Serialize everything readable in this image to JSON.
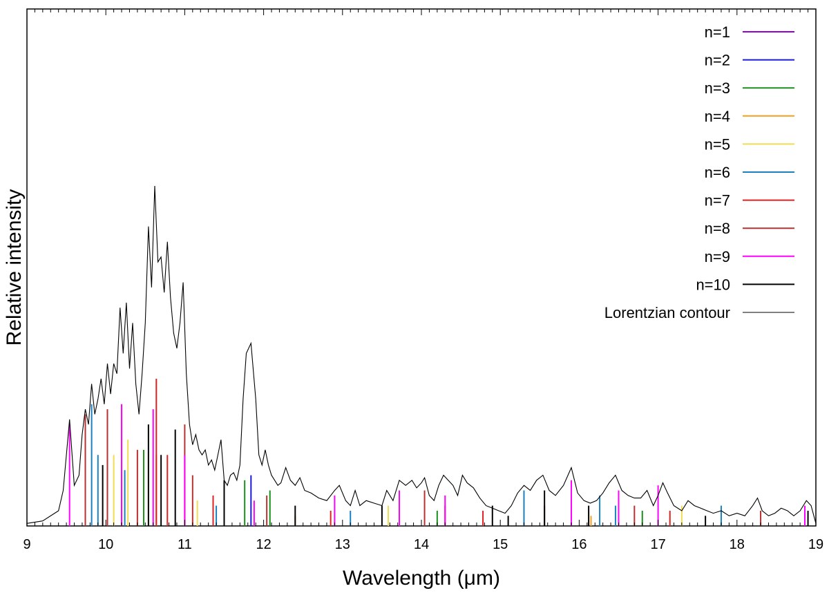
{
  "chart_data": {
    "type": "line",
    "title": "",
    "xlabel": "Wavelength (μm)",
    "ylabel": "Relative intensity",
    "xlim": [
      9,
      19
    ],
    "ylim": [
      0,
      1
    ],
    "x_ticks": [
      9,
      10,
      11,
      12,
      13,
      14,
      15,
      16,
      17,
      18,
      19
    ],
    "grid": false,
    "legend_position": "top-right",
    "series": [
      {
        "name": "n=1",
        "color": "#9400d3",
        "style": "sticks",
        "lines": []
      },
      {
        "name": "n=2",
        "color": "#1a1ad8",
        "style": "sticks",
        "lines": [
          [
            11.84,
            0.1
          ]
        ]
      },
      {
        "name": "n=3",
        "color": "#1a8f1a",
        "style": "sticks",
        "lines": [
          [
            10.48,
            0.15
          ],
          [
            11.76,
            0.09
          ],
          [
            12.08,
            0.07
          ],
          [
            14.2,
            0.03
          ],
          [
            16.8,
            0.03
          ]
        ]
      },
      {
        "name": "n=4",
        "color": "#f0a020",
        "style": "sticks",
        "lines": [
          [
            10.2,
            0.11
          ],
          [
            10.64,
            0.14
          ],
          [
            12.4,
            0.02
          ],
          [
            16.15,
            0.02
          ]
        ]
      },
      {
        "name": "n=5",
        "color": "#f0dc50",
        "style": "sticks",
        "lines": [
          [
            10.1,
            0.14
          ],
          [
            10.28,
            0.17
          ],
          [
            11.16,
            0.05
          ],
          [
            13.58,
            0.04
          ],
          [
            17.3,
            0.04
          ]
        ]
      },
      {
        "name": "n=6",
        "color": "#1a80c0",
        "style": "sticks",
        "lines": [
          [
            9.82,
            0.24
          ],
          [
            9.9,
            0.14
          ],
          [
            10.24,
            0.11
          ],
          [
            11.4,
            0.04
          ],
          [
            13.1,
            0.03
          ],
          [
            15.3,
            0.07
          ],
          [
            16.26,
            0.06
          ],
          [
            16.46,
            0.04
          ],
          [
            17.8,
            0.04
          ]
        ]
      },
      {
        "name": "n=7",
        "color": "#e02020",
        "style": "sticks",
        "lines": [
          [
            10.64,
            0.29
          ],
          [
            10.78,
            0.14
          ],
          [
            11.36,
            0.06
          ],
          [
            12.85,
            0.03
          ],
          [
            14.78,
            0.03
          ],
          [
            17.15,
            0.03
          ]
        ]
      },
      {
        "name": "n=8",
        "color": "#b83030",
        "style": "sticks",
        "lines": [
          [
            9.74,
            0.22
          ],
          [
            10.02,
            0.23
          ],
          [
            10.4,
            0.15
          ],
          [
            11.0,
            0.2
          ],
          [
            11.1,
            0.1
          ],
          [
            12.04,
            0.06
          ],
          [
            14.04,
            0.07
          ],
          [
            14.3,
            0.04
          ],
          [
            15.56,
            0.04
          ],
          [
            16.7,
            0.04
          ],
          [
            18.3,
            0.03
          ]
        ]
      },
      {
        "name": "n=9",
        "color": "#ff00ff",
        "style": "sticks",
        "lines": [
          [
            9.54,
            0.2
          ],
          [
            10.2,
            0.24
          ],
          [
            10.6,
            0.23
          ],
          [
            11.0,
            0.14
          ],
          [
            11.88,
            0.05
          ],
          [
            12.9,
            0.06
          ],
          [
            13.72,
            0.07
          ],
          [
            14.3,
            0.06
          ],
          [
            15.9,
            0.09
          ],
          [
            16.5,
            0.07
          ],
          [
            17.0,
            0.08
          ],
          [
            18.86,
            0.04
          ]
        ]
      },
      {
        "name": "n=10",
        "color": "#000000",
        "style": "sticks",
        "lines": [
          [
            9.96,
            0.12
          ],
          [
            10.54,
            0.2
          ],
          [
            10.7,
            0.14
          ],
          [
            10.88,
            0.19
          ],
          [
            11.5,
            0.09
          ],
          [
            12.4,
            0.04
          ],
          [
            13.5,
            0.04
          ],
          [
            14.9,
            0.04
          ],
          [
            15.1,
            0.02
          ],
          [
            15.56,
            0.07
          ],
          [
            16.12,
            0.04
          ],
          [
            17.6,
            0.02
          ],
          [
            18.9,
            0.03
          ]
        ]
      },
      {
        "name": "Lorentzian contour",
        "color": "#000000",
        "style": "line",
        "x": [
          9.0,
          9.2,
          9.4,
          9.46,
          9.54,
          9.6,
          9.66,
          9.7,
          9.74,
          9.78,
          9.82,
          9.86,
          9.9,
          9.94,
          9.98,
          10.02,
          10.06,
          10.1,
          10.14,
          10.18,
          10.22,
          10.26,
          10.3,
          10.34,
          10.38,
          10.42,
          10.46,
          10.5,
          10.54,
          10.58,
          10.62,
          10.66,
          10.7,
          10.74,
          10.78,
          10.82,
          10.86,
          10.9,
          10.94,
          10.98,
          11.02,
          11.06,
          11.1,
          11.14,
          11.18,
          11.22,
          11.26,
          11.3,
          11.34,
          11.38,
          11.42,
          11.46,
          11.5,
          11.54,
          11.58,
          11.62,
          11.66,
          11.7,
          11.74,
          11.78,
          11.84,
          11.9,
          11.94,
          11.98,
          12.02,
          12.06,
          12.1,
          12.14,
          12.18,
          12.22,
          12.28,
          12.34,
          12.4,
          12.46,
          12.52,
          12.6,
          12.7,
          12.8,
          12.9,
          12.96,
          13.04,
          13.1,
          13.16,
          13.22,
          13.3,
          13.4,
          13.5,
          13.56,
          13.64,
          13.72,
          13.8,
          13.88,
          13.94,
          14.0,
          14.04,
          14.1,
          14.16,
          14.22,
          14.28,
          14.34,
          14.4,
          14.46,
          14.52,
          14.58,
          14.66,
          14.74,
          14.82,
          14.9,
          14.98,
          15.06,
          15.14,
          15.22,
          15.3,
          15.38,
          15.46,
          15.54,
          15.62,
          15.7,
          15.8,
          15.9,
          15.98,
          16.06,
          16.14,
          16.22,
          16.3,
          16.38,
          16.46,
          16.54,
          16.62,
          16.7,
          16.78,
          16.86,
          16.94,
          17.0,
          17.06,
          17.12,
          17.2,
          17.3,
          17.38,
          17.46,
          17.54,
          17.62,
          17.7,
          17.8,
          17.9,
          18.0,
          18.1,
          18.2,
          18.26,
          18.32,
          18.4,
          18.48,
          18.56,
          18.64,
          18.72,
          18.8,
          18.88,
          18.94,
          19.0
        ],
        "y": [
          0.005,
          0.01,
          0.03,
          0.07,
          0.21,
          0.08,
          0.1,
          0.18,
          0.23,
          0.2,
          0.28,
          0.22,
          0.25,
          0.29,
          0.24,
          0.32,
          0.26,
          0.32,
          0.3,
          0.43,
          0.34,
          0.44,
          0.31,
          0.4,
          0.28,
          0.22,
          0.3,
          0.4,
          0.59,
          0.47,
          0.67,
          0.52,
          0.53,
          0.46,
          0.56,
          0.45,
          0.38,
          0.35,
          0.4,
          0.48,
          0.3,
          0.2,
          0.16,
          0.18,
          0.15,
          0.14,
          0.15,
          0.12,
          0.13,
          0.11,
          0.14,
          0.17,
          0.09,
          0.08,
          0.1,
          0.105,
          0.09,
          0.12,
          0.25,
          0.34,
          0.36,
          0.25,
          0.14,
          0.12,
          0.15,
          0.12,
          0.1,
          0.09,
          0.08,
          0.085,
          0.115,
          0.09,
          0.08,
          0.095,
          0.07,
          0.065,
          0.055,
          0.05,
          0.07,
          0.08,
          0.05,
          0.04,
          0.07,
          0.04,
          0.05,
          0.045,
          0.04,
          0.07,
          0.05,
          0.09,
          0.08,
          0.09,
          0.075,
          0.085,
          0.095,
          0.06,
          0.05,
          0.08,
          0.1,
          0.09,
          0.08,
          0.06,
          0.1,
          0.085,
          0.075,
          0.055,
          0.04,
          0.035,
          0.03,
          0.025,
          0.04,
          0.065,
          0.08,
          0.07,
          0.09,
          0.1,
          0.07,
          0.06,
          0.08,
          0.115,
          0.065,
          0.05,
          0.045,
          0.05,
          0.065,
          0.085,
          0.1,
          0.07,
          0.06,
          0.055,
          0.055,
          0.07,
          0.04,
          0.06,
          0.085,
          0.065,
          0.04,
          0.03,
          0.05,
          0.04,
          0.035,
          0.03,
          0.025,
          0.03,
          0.02,
          0.025,
          0.02,
          0.04,
          0.055,
          0.03,
          0.02,
          0.025,
          0.035,
          0.03,
          0.02,
          0.03,
          0.05,
          0.04,
          0.005
        ]
      }
    ]
  }
}
